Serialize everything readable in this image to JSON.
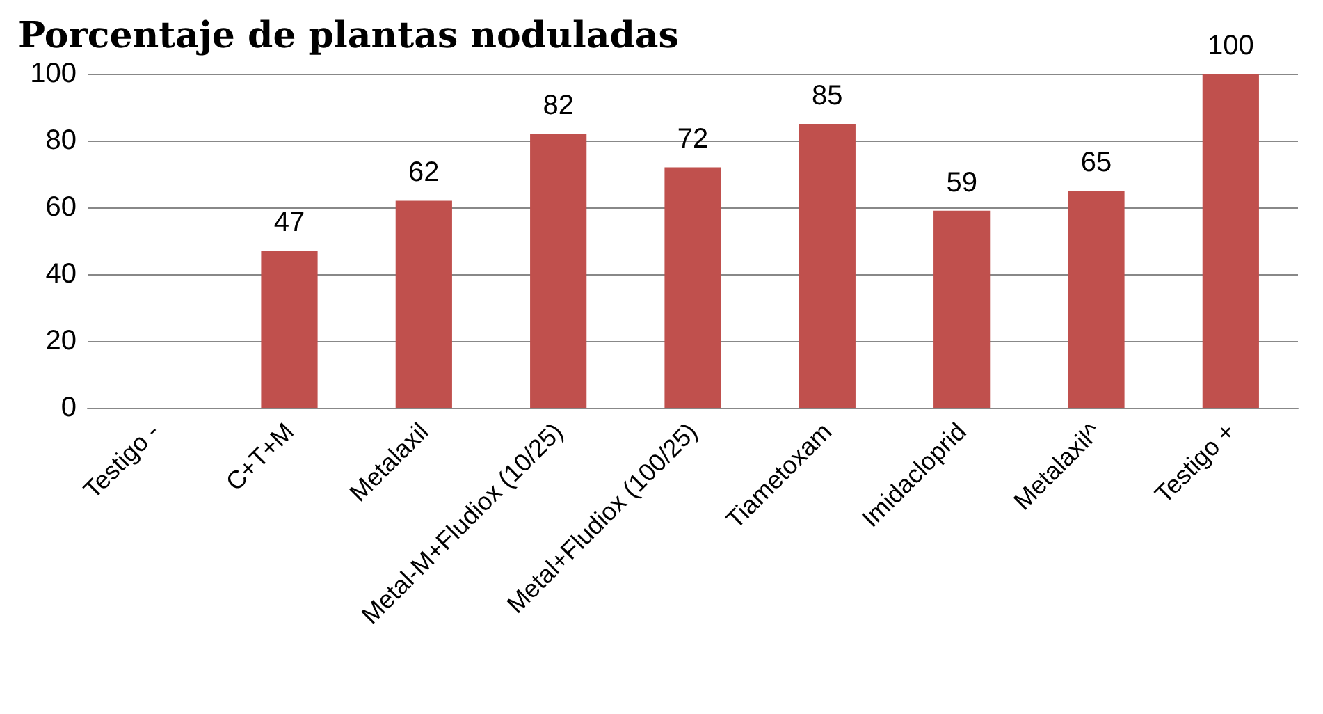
{
  "chart_data": {
    "type": "bar",
    "title": "Porcentaje de plantas noduladas",
    "categories": [
      "Testigo -",
      "C+T+M",
      "Metalaxil",
      "Metal-M+Fludiox (10/25)",
      "Metal+Fludiox (100/25)",
      "Tiametoxam",
      "Imidacloprid",
      "Metalaxil^",
      "Testigo +"
    ],
    "values": [
      null,
      47,
      62,
      82,
      72,
      85,
      59,
      65,
      100
    ],
    "color": "#c0504d",
    "ylim": [
      0,
      100
    ],
    "yticks": [
      0,
      20,
      40,
      60,
      80,
      100
    ],
    "grid": "y",
    "data_labels": true
  }
}
